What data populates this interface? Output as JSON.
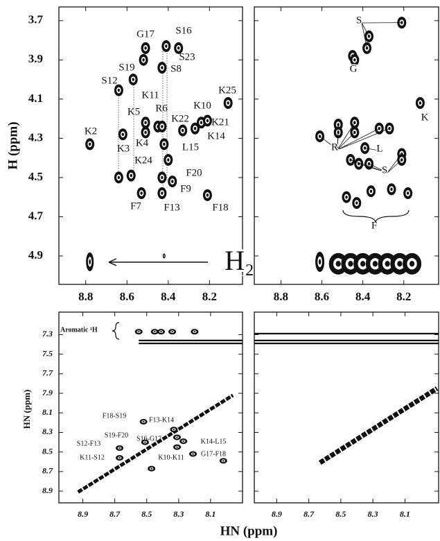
{
  "chart_data": [
    {
      "type": "scatter",
      "ylabel": "H (ppm)",
      "xlim": [
        8.93,
        8.04
      ],
      "ylim": [
        3.63,
        5.045
      ],
      "xticks": [
        8.8,
        8.6,
        8.4,
        8.2
      ],
      "yticks": [
        3.7,
        3.9,
        4.1,
        4.3,
        4.5,
        4.7,
        4.9
      ],
      "series": [
        {
          "color": "#111111",
          "x": [
            8.78,
            8.64,
            8.62,
            8.51,
            8.57,
            8.51,
            8.51,
            8.45,
            8.43,
            8.41,
            8.35,
            8.43,
            8.33,
            8.24,
            8.21,
            8.11,
            8.27,
            8.42,
            8.4,
            8.38,
            8.43,
            8.43,
            8.53,
            8.21,
            8.64,
            8.58,
            8.52
          ],
          "y": [
            4.33,
            4.055,
            4.28,
            3.84,
            4.0,
            4.22,
            4.27,
            4.24,
            4.24,
            3.83,
            3.84,
            3.94,
            4.26,
            4.22,
            4.21,
            4.12,
            4.25,
            4.33,
            4.41,
            4.52,
            4.5,
            4.58,
            4.58,
            4.59,
            4.5,
            4.49,
            3.9
          ],
          "labels": [
            "K2",
            "S12",
            "K3",
            "G17",
            "S19",
            "K5",
            "K4",
            "K11",
            "R6",
            "S16",
            "S23",
            "S8",
            "K22",
            "K10",
            "K21",
            "K25",
            "K14",
            "L15",
            "K24",
            "F20",
            "F9",
            "F13",
            "F7",
            "F18",
            null,
            null,
            null
          ]
        }
      ],
      "water": {
        "x": [
          8.78,
          8.42
        ],
        "y": [
          4.93,
          4.9
        ]
      },
      "annotation": "H₂O"
    },
    {
      "type": "scatter",
      "xlim": [
        8.93,
        8.03
      ],
      "ylim": [
        3.63,
        5.045
      ],
      "xticks": [
        8.8,
        8.6,
        8.4,
        8.2
      ],
      "yticks": [
        3.7,
        3.9,
        4.1,
        4.3,
        4.5,
        4.7,
        4.9
      ],
      "series": [
        {
          "name": "S",
          "color": "#111111",
          "x": [
            8.21,
            8.37,
            8.38
          ],
          "y": [
            3.71,
            3.78,
            3.84
          ]
        },
        {
          "name": "G",
          "color": "#111111",
          "x": [
            8.45,
            8.44
          ],
          "y": [
            3.88,
            3.9
          ]
        },
        {
          "name": "K",
          "color": "#111111",
          "x": [
            8.12
          ],
          "y": [
            4.12
          ]
        },
        {
          "name": "R",
          "color": "#111111",
          "x": [
            8.61,
            8.52,
            8.44,
            8.52,
            8.44,
            8.32,
            8.27
          ],
          "y": [
            4.29,
            4.23,
            4.22,
            4.27,
            4.27,
            4.25,
            4.25
          ]
        },
        {
          "name": "L",
          "color": "#111111",
          "x": [
            8.39
          ],
          "y": [
            4.35
          ]
        },
        {
          "name": "S",
          "color": "#111111",
          "x": [
            8.46,
            8.42,
            8.37,
            8.21,
            8.21
          ],
          "y": [
            4.41,
            4.43,
            4.43,
            4.38,
            4.41
          ]
        },
        {
          "name": "F",
          "color": "#111111",
          "x": [
            8.48,
            8.43,
            8.36,
            8.26,
            8.18
          ],
          "y": [
            4.6,
            4.63,
            4.57,
            4.56,
            4.58
          ]
        }
      ],
      "water": {
        "x": [
          8.61,
          8.52,
          8.46,
          8.4,
          8.34,
          8.28,
          8.22,
          8.16
        ],
        "y": [
          4.93,
          4.94,
          4.94,
          4.94,
          4.94,
          4.94,
          4.94,
          4.94
        ]
      }
    },
    {
      "type": "scatter",
      "ylabel": "HN (ppm)",
      "xlabel": "HN (ppm)",
      "xlim": [
        9.05,
        7.9
      ],
      "ylim": [
        7.07,
        9.02
      ],
      "xticks": [
        8.9,
        8.7,
        8.5,
        8.3,
        8.1
      ],
      "yticks": [
        7.3,
        7.5,
        7.7,
        7.9,
        8.1,
        8.3,
        8.5,
        8.7,
        8.9
      ],
      "series": [
        {
          "color": "#111111",
          "x": [
            8.52,
            8.33,
            8.51,
            8.31,
            8.67,
            8.67,
            8.31,
            8.21,
            8.27,
            8.47,
            8.02,
            8.55,
            8.45,
            8.41,
            8.34,
            8.2
          ],
          "y": [
            8.19,
            8.27,
            8.4,
            8.35,
            8.46,
            8.56,
            8.45,
            8.52,
            8.39,
            8.67,
            8.59,
            7.27,
            7.27,
            7.27,
            7.27,
            7.27
          ],
          "labels": [
            "F18-S19",
            "F13-K14",
            "S19-F20",
            "S16-G17",
            "S12-F13",
            "K11-S12",
            "K10-K11",
            "G17-F18",
            "K14-L15",
            null,
            null,
            null,
            null,
            null,
            null,
            null
          ]
        }
      ],
      "diagonal": {
        "x": [
          8.93,
          7.96
        ],
        "y": [
          8.91,
          7.92
        ]
      },
      "bands": [
        {
          "x": [
            8.55,
            7.9
          ],
          "y": 7.36
        },
        {
          "x": [
            8.55,
            7.9
          ],
          "y": 7.39
        }
      ],
      "annotation": "Aromatic ¹H"
    },
    {
      "type": "scatter",
      "xlim": [
        9.04,
        7.89
      ],
      "ylim": [
        7.07,
        9.02
      ],
      "xticks": [
        8.9,
        8.7,
        8.5,
        8.3,
        8.1
      ],
      "yticks": [
        7.3,
        7.5,
        7.7,
        7.9,
        8.1,
        8.3,
        8.5,
        8.7,
        8.9
      ],
      "diagonal": {
        "x": [
          8.63,
          7.9
        ],
        "y": [
          8.61,
          7.85
        ]
      },
      "bands": [
        {
          "x": [
            9.04,
            7.89
          ],
          "y": 7.29
        },
        {
          "x": [
            9.04,
            7.89
          ],
          "y": 7.36
        },
        {
          "x": [
            9.04,
            7.89
          ],
          "y": 7.39
        }
      ]
    }
  ]
}
